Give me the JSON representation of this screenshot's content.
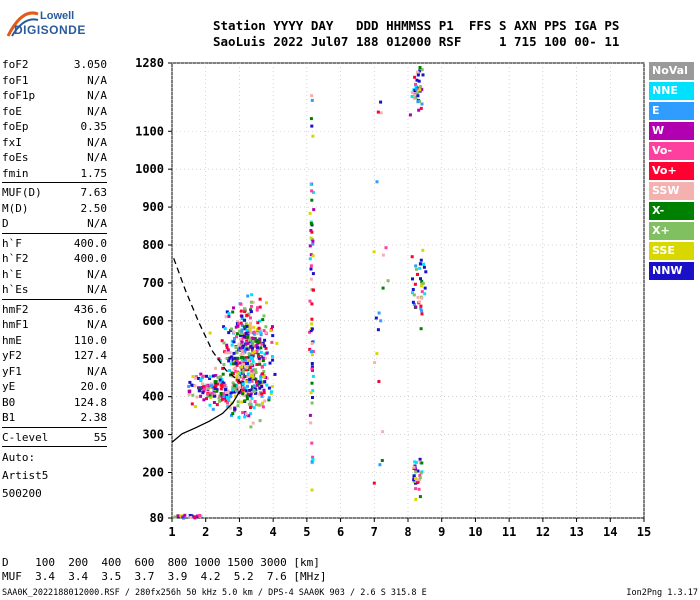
{
  "logo": {
    "line1": "Lowell",
    "line2": "DIGISONDE"
  },
  "header": {
    "line1": "Station YYYY DAY   DDD HHMMSS P1  FFS S AXN PPS IGA PS",
    "line2": "SaoLuis 2022 Jul07 188 012000 RSF     1 715 100 00- 11"
  },
  "params": {
    "group1": [
      {
        "label": "foF2",
        "value": "3.050"
      },
      {
        "label": "foF1",
        "value": "N/A"
      },
      {
        "label": "foF1p",
        "value": "N/A"
      },
      {
        "label": "foE",
        "value": "N/A"
      },
      {
        "label": "foEp",
        "value": "0.35"
      },
      {
        "label": "fxI",
        "value": "N/A"
      },
      {
        "label": "foEs",
        "value": "N/A"
      },
      {
        "label": "fmin",
        "value": "1.75"
      }
    ],
    "group2": [
      {
        "label": "MUF(D)",
        "value": "7.63"
      },
      {
        "label": "M(D)",
        "value": "2.50"
      },
      {
        "label": "D",
        "value": "N/A"
      }
    ],
    "group3": [
      {
        "label": "h`F",
        "value": "400.0"
      },
      {
        "label": "h`F2",
        "value": "400.0"
      },
      {
        "label": "h`E",
        "value": "N/A"
      },
      {
        "label": "h`Es",
        "value": "N/A"
      }
    ],
    "group4": [
      {
        "label": "hmF2",
        "value": "436.6"
      },
      {
        "label": "hmF1",
        "value": "N/A"
      },
      {
        "label": "hmE",
        "value": "110.0"
      },
      {
        "label": "yF2",
        "value": "127.4"
      },
      {
        "label": "yF1",
        "value": "N/A"
      },
      {
        "label": "yE",
        "value": "20.0"
      },
      {
        "label": "B0",
        "value": "124.8"
      },
      {
        "label": "B1",
        "value": "2.38"
      }
    ],
    "group5": [
      {
        "label": "C-level",
        "value": "55"
      }
    ],
    "auto": "Auto:\nArtist5\n500200"
  },
  "legend": [
    {
      "name": "NoVal",
      "color": "#9a9a9a"
    },
    {
      "name": "NNE",
      "color": "#00e0ff"
    },
    {
      "name": "E",
      "color": "#2f9cff"
    },
    {
      "name": "W",
      "color": "#b000b0"
    },
    {
      "name": "Vo-",
      "color": "#ff3fa0"
    },
    {
      "name": "Vo+",
      "color": "#ff0030"
    },
    {
      "name": "SSW",
      "color": "#f5b0b0"
    },
    {
      "name": "X-",
      "color": "#008000"
    },
    {
      "name": "X+",
      "color": "#80c060"
    },
    {
      "name": "SSE",
      "color": "#d8d800"
    },
    {
      "name": "NNW",
      "color": "#1a10c8"
    }
  ],
  "bottom": {
    "d_line": "D    100  200  400  600  800 1000 1500 3000 [km]",
    "muf_line": "MUF  3.4  3.4  3.5  3.7  3.9  4.2  5.2  7.6 [MHz]"
  },
  "footer": {
    "left": "SAA0K_2022188012000.RSF / 280fx256h 50 kHz 5.0 km / DPS-4 SAA0K 903 / 2.6 S 315.8 E",
    "right": "Ion2Png 1.3.17"
  },
  "chart_data": {
    "type": "scatter",
    "x_ticks": [
      1,
      2,
      3,
      4,
      5,
      6,
      7,
      8,
      9,
      10,
      11,
      12,
      13,
      14,
      15
    ],
    "y_ticks": [
      80,
      200,
      300,
      400,
      500,
      600,
      700,
      800,
      900,
      1000,
      1100,
      1280
    ],
    "xlim": [
      1,
      15
    ],
    "ylim": [
      80,
      1280
    ],
    "grid": "dotted",
    "profile_line": [
      {
        "x": 1.0,
        "y": 280
      },
      {
        "x": 1.3,
        "y": 302
      },
      {
        "x": 1.7,
        "y": 318
      },
      {
        "x": 2.1,
        "y": 335
      },
      {
        "x": 2.5,
        "y": 356
      },
      {
        "x": 2.8,
        "y": 383
      },
      {
        "x": 3.05,
        "y": 420
      }
    ],
    "profile_dashed": [
      {
        "x": 1.05,
        "y": 765
      },
      {
        "x": 1.4,
        "y": 680
      },
      {
        "x": 1.8,
        "y": 595
      },
      {
        "x": 2.2,
        "y": 520
      },
      {
        "x": 2.6,
        "y": 470
      },
      {
        "x": 3.05,
        "y": 436
      }
    ],
    "clusters": [
      {
        "name": "F-trace",
        "cx": 3.2,
        "cy": 500,
        "sx": 0.35,
        "sy": 70,
        "n": 520
      },
      {
        "name": "F-low",
        "cx": 2.2,
        "cy": 420,
        "sx": 0.35,
        "sy": 20,
        "n": 130
      },
      {
        "name": "E-low",
        "cx": 1.6,
        "cy": 87,
        "sx": 0.3,
        "sy": 4,
        "n": 18
      },
      {
        "name": "ch8-top",
        "cx": 8.25,
        "cy": 1210,
        "sx": 0.1,
        "sy": 35,
        "n": 40
      },
      {
        "name": "ch8-mid",
        "cx": 8.3,
        "cy": 705,
        "sx": 0.1,
        "sy": 40,
        "n": 40
      },
      {
        "name": "ch8-low",
        "cx": 8.25,
        "cy": 200,
        "sx": 0.08,
        "sy": 30,
        "n": 35
      },
      {
        "name": "col5",
        "cx": 5.1,
        "cy": 600,
        "sx": 0.03,
        "sy": 330,
        "n": 70
      },
      {
        "name": "col7",
        "cx": 7.1,
        "cy": 700,
        "sx": 0.1,
        "sy": 300,
        "n": 22
      }
    ]
  }
}
